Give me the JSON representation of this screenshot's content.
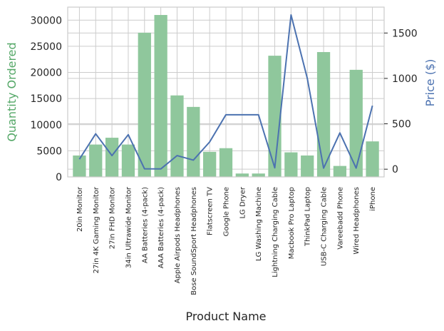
{
  "chart_data": {
    "type": "bar",
    "xlabel": "Product Name",
    "categories": [
      "20in Monitor",
      "27in 4K Gaming Monitor",
      "27in FHD Monitor",
      "34in Ultrawide Monitor",
      "AA Batteries (4-pack)",
      "AAA Batteries (4-pack)",
      "Apple Airpods Headphones",
      "Bose SoundSport Headphones",
      "Flatscreen TV",
      "Google Phone",
      "LG Dryer",
      "LG Washing Machine",
      "Lightning Charging Cable",
      "Macbook Pro Laptop",
      "ThinkPad Laptop",
      "USB-C Charging Cable",
      "Vareebadd Phone",
      "Wired Headphones",
      "iPhone"
    ],
    "series": [
      {
        "name": "Quantity Ordered",
        "type": "bar",
        "axis": "left",
        "values": [
          4100,
          6200,
          7500,
          6200,
          27600,
          31000,
          15600,
          13400,
          4800,
          5500,
          650,
          650,
          23200,
          4700,
          4100,
          23900,
          2100,
          20500,
          6800
        ]
      },
      {
        "name": "Price ($)",
        "type": "line",
        "axis": "right",
        "values": [
          110,
          390,
          150,
          380,
          4,
          3,
          150,
          100,
          300,
          600,
          600,
          600,
          15,
          1700,
          1000,
          12,
          400,
          12,
          700
        ]
      }
    ],
    "y_left": {
      "label": "Quantity Ordered",
      "ylim": [
        0,
        32500
      ],
      "ticks": [
        0,
        5000,
        10000,
        15000,
        20000,
        25000,
        30000
      ]
    },
    "y_right": {
      "label": "Price ($)",
      "ylim": [
        -85,
        1785
      ],
      "ticks": [
        0,
        500,
        1000,
        1500
      ]
    },
    "grid": true,
    "colors": {
      "bar": "#8fc79c",
      "line": "#4c72b0",
      "left_label": "#55a868",
      "right_label": "#4c72b0",
      "grid": "#cccccc",
      "spine": "#cccccc"
    }
  }
}
